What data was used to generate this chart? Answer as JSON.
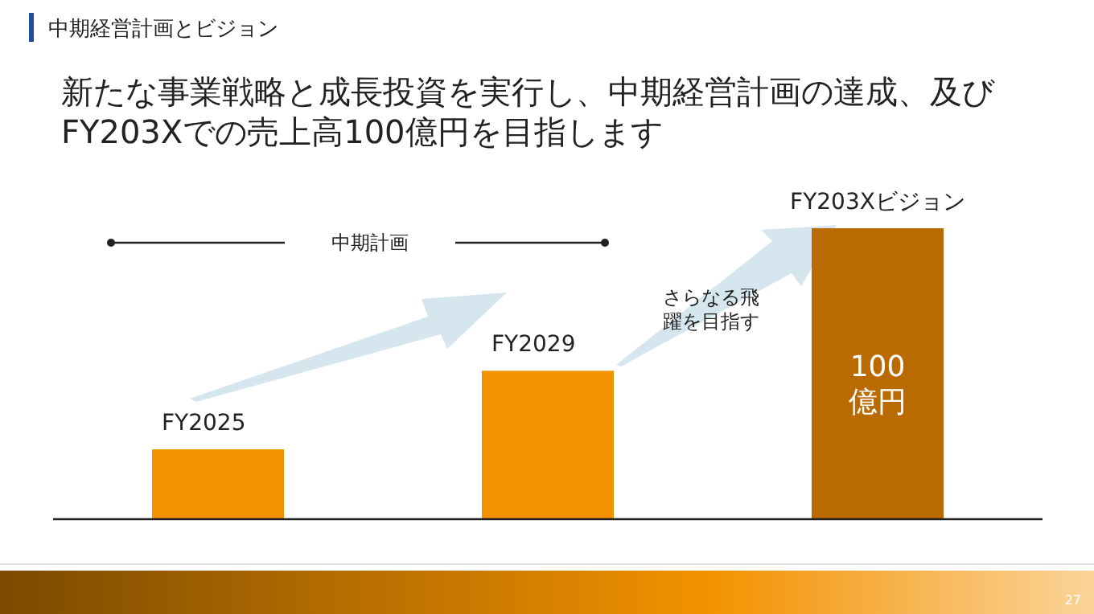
{
  "chart_data": {
    "type": "bar",
    "title": "中期経営計画とビジョン",
    "subtitle": "新たな事業戦略と成長投資を実行し、中期経営計画の達成、及び\nFY203Xでの売上高100億円を目指します",
    "categories": [
      "FY2025",
      "FY2029",
      "FY203Xビジョン"
    ],
    "values": [
      24,
      51,
      100
    ],
    "colors": [
      "#f39200",
      "#f39200",
      "#b96a00"
    ],
    "value_labels": [
      null,
      null,
      "100億円"
    ],
    "annotations": [
      "中期計画",
      "さらなる飛躍を目指す",
      "27"
    ]
  }
}
